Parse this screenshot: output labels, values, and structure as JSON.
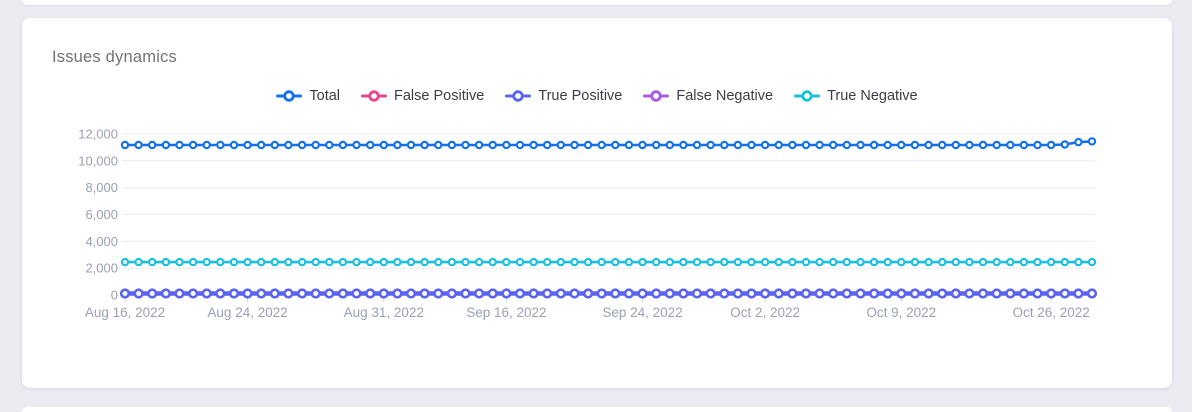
{
  "chart_data": {
    "type": "line",
    "title": "Issues dynamics",
    "xlabel": "",
    "ylabel": "",
    "grid": true,
    "legend_position": "top-center",
    "ylim": [
      0,
      12000
    ],
    "y_ticks": [
      0,
      2000,
      4000,
      6000,
      8000,
      10000,
      12000
    ],
    "y_tick_labels": [
      "0",
      "2,000",
      "4,000",
      "6,000",
      "8,000",
      "10,000",
      "12,000"
    ],
    "n_points": 72,
    "x_tick_indices": [
      0,
      9,
      19,
      28,
      38,
      47,
      57,
      68
    ],
    "x_tick_labels": [
      "Aug 16, 2022",
      "Aug 24, 2022",
      "Aug 31, 2022",
      "Sep 16, 2022",
      "Sep 24, 2022",
      "Oct 2, 2022",
      "Oct 9, 2022",
      "Oct 26, 2022"
    ],
    "axis_label_color": "#9aa1b6",
    "gridline_color": "#e9ecf6",
    "tick_mark_color": "#cdd2e1",
    "draw_order": [
      1,
      3,
      2,
      4,
      0
    ],
    "series": [
      {
        "name": "Total",
        "color": "#1571e8",
        "values": [
          11180,
          11180,
          11180,
          11180,
          11180,
          11180,
          11180,
          11180,
          11180,
          11180,
          11180,
          11180,
          11180,
          11180,
          11180,
          11180,
          11180,
          11180,
          11180,
          11180,
          11180,
          11180,
          11180,
          11180,
          11180,
          11180,
          11180,
          11180,
          11180,
          11180,
          11180,
          11180,
          11180,
          11180,
          11180,
          11180,
          11180,
          11180,
          11180,
          11180,
          11180,
          11180,
          11180,
          11180,
          11180,
          11180,
          11180,
          11180,
          11180,
          11180,
          11180,
          11180,
          11180,
          11180,
          11180,
          11180,
          11180,
          11180,
          11180,
          11180,
          11180,
          11180,
          11180,
          11180,
          11180,
          11180,
          11180,
          11180,
          11180,
          11220,
          11400,
          11450
        ]
      },
      {
        "name": "False Positive",
        "color": "#e8468c",
        "values": [
          55,
          55,
          55,
          55,
          55,
          55,
          55,
          55,
          55,
          55,
          55,
          55,
          55,
          55,
          55,
          55,
          55,
          55,
          55,
          55,
          55,
          55,
          55,
          55,
          55,
          55,
          55,
          55,
          55,
          55,
          55,
          55,
          55,
          55,
          55,
          55,
          55,
          55,
          55,
          55,
          55,
          55,
          55,
          55,
          55,
          55,
          55,
          55,
          55,
          55,
          55,
          55,
          55,
          55,
          55,
          55,
          55,
          55,
          55,
          55,
          55,
          55,
          55,
          55,
          55,
          55,
          55,
          55,
          55,
          55,
          55,
          55
        ]
      },
      {
        "name": "True Positive",
        "color": "#5a64f0",
        "values": [
          110,
          110,
          110,
          110,
          110,
          110,
          110,
          110,
          110,
          110,
          110,
          110,
          110,
          110,
          110,
          110,
          110,
          110,
          110,
          110,
          110,
          110,
          110,
          110,
          110,
          110,
          110,
          110,
          110,
          110,
          110,
          110,
          110,
          110,
          110,
          110,
          110,
          110,
          110,
          110,
          110,
          110,
          110,
          110,
          110,
          110,
          110,
          110,
          110,
          110,
          110,
          110,
          110,
          110,
          110,
          110,
          110,
          110,
          110,
          110,
          110,
          110,
          110,
          110,
          110,
          110,
          110,
          110,
          110,
          110,
          110,
          110
        ]
      },
      {
        "name": "False Negative",
        "color": "#a85ae6",
        "values": [
          90,
          90,
          90,
          90,
          90,
          90,
          90,
          90,
          90,
          90,
          90,
          90,
          90,
          90,
          90,
          90,
          90,
          90,
          90,
          90,
          90,
          90,
          90,
          90,
          90,
          90,
          90,
          90,
          90,
          90,
          90,
          90,
          90,
          90,
          90,
          90,
          90,
          90,
          90,
          90,
          90,
          90,
          90,
          90,
          90,
          90,
          90,
          90,
          90,
          90,
          90,
          90,
          90,
          90,
          90,
          90,
          90,
          90,
          90,
          90,
          90,
          90,
          90,
          90,
          90,
          90,
          90,
          90,
          90,
          90,
          90,
          90
        ]
      },
      {
        "name": "True Negative",
        "color": "#1ac0de",
        "values": [
          2450,
          2450,
          2450,
          2450,
          2450,
          2450,
          2450,
          2450,
          2450,
          2450,
          2450,
          2450,
          2450,
          2450,
          2450,
          2450,
          2450,
          2450,
          2450,
          2450,
          2450,
          2450,
          2450,
          2450,
          2450,
          2450,
          2450,
          2450,
          2450,
          2450,
          2450,
          2450,
          2450,
          2450,
          2450,
          2450,
          2450,
          2450,
          2450,
          2450,
          2450,
          2450,
          2450,
          2450,
          2450,
          2450,
          2450,
          2450,
          2450,
          2450,
          2450,
          2450,
          2450,
          2450,
          2450,
          2450,
          2450,
          2450,
          2450,
          2450,
          2450,
          2450,
          2450,
          2450,
          2450,
          2450,
          2450,
          2450,
          2450,
          2450,
          2450,
          2450
        ]
      }
    ]
  }
}
